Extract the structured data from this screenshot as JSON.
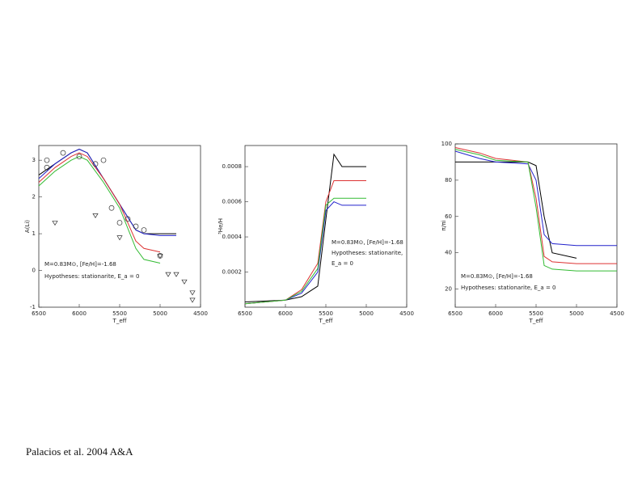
{
  "chart_data": [
    {
      "type": "line",
      "ylabel": "A(Li)",
      "xlabel": "T_eff",
      "annotations": [
        "M=0.83M⊙, [Fe/H]=-1.68",
        "Hypotheses: stationarite, E_a = 0"
      ],
      "xlim": [
        6500,
        4500
      ],
      "xticks": [
        6500,
        6000,
        5500,
        5000,
        4500
      ],
      "ylim": [
        -1,
        3.4
      ],
      "yticks": [
        -1,
        0,
        1,
        2,
        3
      ],
      "x": [
        6500,
        6300,
        6100,
        6000,
        5900,
        5700,
        5500,
        5300,
        5200,
        5000,
        4800
      ],
      "series": [
        {
          "color": "#000000",
          "values": [
            2.6,
            2.9,
            3.2,
            3.3,
            3.2,
            2.5,
            1.8,
            1.1,
            1.0,
            1.0,
            1.0
          ]
        },
        {
          "color": "#2222cc",
          "values": [
            2.5,
            2.9,
            3.2,
            3.3,
            3.2,
            2.5,
            1.8,
            1.1,
            1.0,
            0.95,
            0.95
          ]
        },
        {
          "color": "#dd3333",
          "values": [
            2.4,
            2.8,
            3.1,
            3.2,
            3.1,
            2.5,
            1.8,
            0.8,
            0.6,
            0.5,
            null
          ]
        },
        {
          "color": "#33bb33",
          "values": [
            2.3,
            2.7,
            3.0,
            3.1,
            3.0,
            2.4,
            1.7,
            0.6,
            0.3,
            0.2,
            null
          ]
        },
        {
          "color": "#333333",
          "marker": "circle",
          "x": [
            6400,
            6400,
            6200,
            6000,
            5800,
            5700,
            5600,
            5500,
            5400,
            5300,
            5200,
            5000
          ],
          "values": [
            2.8,
            3.0,
            3.2,
            3.1,
            2.9,
            3.0,
            1.7,
            1.3,
            1.4,
            1.2,
            1.1,
            0.4
          ]
        },
        {
          "color": "#333333",
          "marker": "triangle",
          "x": [
            6300,
            5800,
            5500,
            5000,
            4900,
            4800,
            4700,
            4600,
            4600
          ],
          "values": [
            1.3,
            1.5,
            0.9,
            0.4,
            -0.1,
            -0.1,
            -0.3,
            -0.6,
            -0.8
          ]
        }
      ]
    },
    {
      "type": "line",
      "ylabel": "³He/H",
      "xlabel": "T_eff",
      "annotations": [
        "M=0.83M⊙, [Fe/H]=-1.68",
        "Hypotheses: stationarite,",
        "E_a = 0"
      ],
      "xlim": [
        6500,
        4500
      ],
      "xticks": [
        6500,
        6000,
        5500,
        5000,
        4500
      ],
      "ylim": [
        0,
        0.00092
      ],
      "yticks": [
        0.0002,
        0.0004,
        0.0006,
        0.0008
      ],
      "x": [
        6500,
        6000,
        5800,
        5600,
        5500,
        5400,
        5300,
        5000
      ],
      "series": [
        {
          "color": "#000000",
          "values": [
            3e-05,
            4e-05,
            6e-05,
            0.00012,
            0.0005,
            0.00087,
            0.0008,
            0.0008
          ]
        },
        {
          "color": "#2222cc",
          "values": [
            2e-05,
            4e-05,
            8e-05,
            0.0002,
            0.00055,
            0.0006,
            0.00058,
            0.00058
          ]
        },
        {
          "color": "#dd3333",
          "values": [
            2e-05,
            4e-05,
            0.0001,
            0.00025,
            0.0006,
            0.00072,
            0.00072,
            0.00072
          ]
        },
        {
          "color": "#33bb33",
          "values": [
            2e-05,
            4e-05,
            9e-05,
            0.00022,
            0.00058,
            0.00062,
            0.00062,
            0.00062
          ]
        }
      ]
    },
    {
      "type": "line",
      "ylabel": "π/πi",
      "xlabel": "T_eff",
      "annotations": [
        "M=0.83M⊙, [Fe/H]=-1.68",
        "Hypotheses: stationarite, E_a = 0"
      ],
      "xlim": [
        6500,
        4500
      ],
      "xticks": [
        6500,
        6000,
        5500,
        5000,
        4500
      ],
      "ylim": [
        10,
        100
      ],
      "yticks": [
        20,
        40,
        60,
        80,
        100
      ],
      "x": [
        6500,
        6200,
        6000,
        5600,
        5500,
        5400,
        5300,
        5000,
        4500
      ],
      "series": [
        {
          "color": "#000000",
          "values": [
            90,
            90,
            90,
            90,
            88,
            60,
            40,
            37,
            null
          ]
        },
        {
          "color": "#2222cc",
          "values": [
            96,
            92,
            90,
            89,
            80,
            50,
            45,
            44,
            44
          ]
        },
        {
          "color": "#dd3333",
          "values": [
            98,
            95,
            92,
            90,
            70,
            38,
            35,
            34,
            34
          ]
        },
        {
          "color": "#33bb33",
          "values": [
            97,
            94,
            91,
            90,
            65,
            33,
            31,
            30,
            30
          ]
        }
      ]
    }
  ],
  "footer": "Palacios et al. 2004 A&A"
}
